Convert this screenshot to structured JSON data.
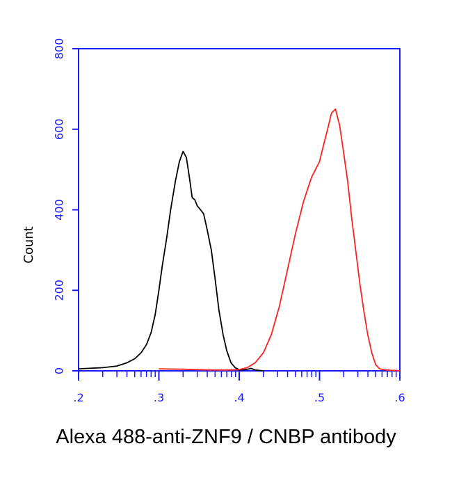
{
  "chart_data": {
    "type": "line",
    "title": "",
    "xlabel": "Alexa 488-anti-ZNF9 / CNBP antibody",
    "ylabel": "Count",
    "x_scale": "log",
    "xlim": [
      100,
      1000000
    ],
    "ylim": [
      0,
      800
    ],
    "x_ticks": [
      100,
      1000,
      10000,
      100000,
      1000000
    ],
    "x_tick_labels": [
      ".2",
      ".3",
      ".4",
      ".5",
      ".6"
    ],
    "y_ticks": [
      0,
      200,
      400,
      600,
      800
    ],
    "y_tick_labels": [
      "0",
      "200",
      "400",
      "600",
      "800"
    ],
    "grid": false,
    "legend": "none",
    "colors": {
      "axis": "#1a1aff",
      "text": "#000000"
    },
    "series": [
      {
        "color": "#000000",
        "x": [
          100,
          200,
          300,
          400,
          500,
          600,
          700,
          800,
          900,
          1000,
          1100,
          1250,
          1400,
          1600,
          1800,
          2000,
          2200,
          2400,
          2600,
          2800,
          3000,
          3300,
          3600,
          4000,
          4500,
          5000,
          5600,
          6300,
          7000,
          7900,
          8900,
          10000,
          11200,
          12600,
          14100,
          15800,
          17800,
          20000
        ],
        "y": [
          5,
          8,
          12,
          20,
          30,
          45,
          65,
          95,
          140,
          200,
          260,
          330,
          400,
          470,
          520,
          545,
          530,
          480,
          430,
          425,
          410,
          400,
          390,
          350,
          300,
          230,
          150,
          90,
          50,
          20,
          8,
          3,
          2,
          4,
          6,
          2,
          1,
          0
        ]
      },
      {
        "color": "#ff2020",
        "x": [
          1000,
          2000,
          3000,
          5000,
          7000,
          10000,
          12600,
          15800,
          20000,
          25100,
          31600,
          39800,
          50100,
          63100,
          79400,
          100000,
          112000,
          126000,
          141000,
          158000,
          178000,
          200000,
          224000,
          251000,
          282000,
          316000,
          355000,
          398000,
          447000,
          501000,
          562000,
          631000,
          708000,
          794000,
          891000,
          1000000
        ],
        "y": [
          5,
          4,
          3,
          2,
          2,
          3,
          8,
          20,
          45,
          90,
          160,
          250,
          340,
          420,
          480,
          520,
          560,
          600,
          640,
          650,
          610,
          540,
          470,
          380,
          300,
          220,
          150,
          90,
          45,
          15,
          5,
          3,
          2,
          1,
          1,
          0
        ]
      }
    ]
  }
}
